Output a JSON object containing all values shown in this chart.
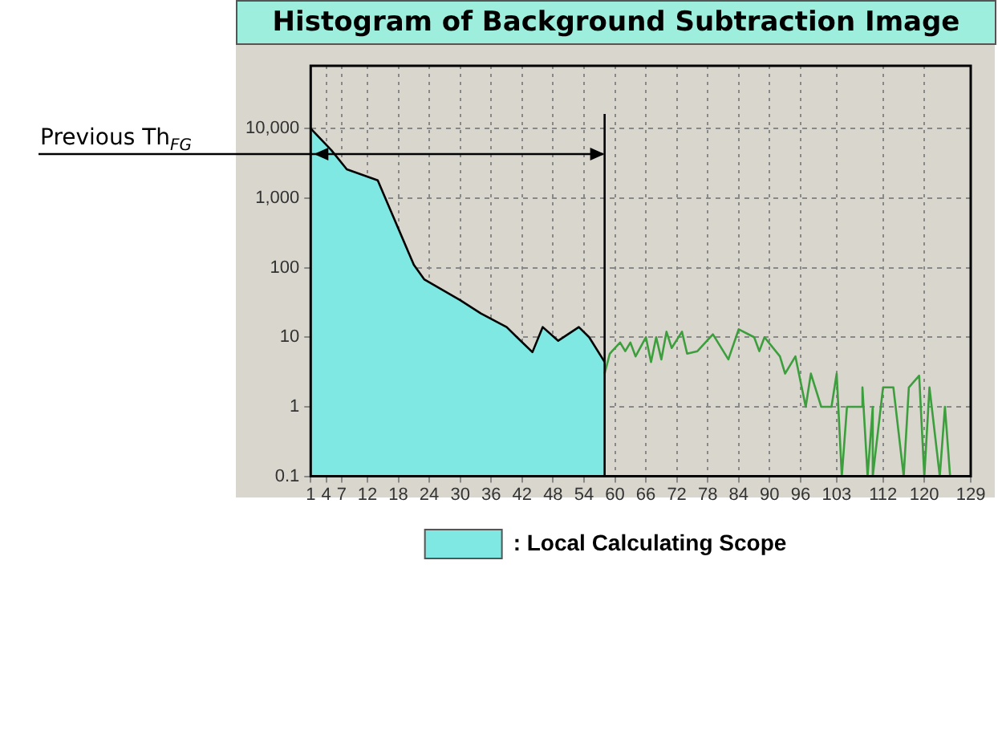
{
  "chart_data": {
    "type": "line",
    "title": "Histogram of Background Subtraction Image",
    "xlim": [
      1,
      129
    ],
    "xticks": [
      1,
      4,
      7,
      12,
      18,
      24,
      30,
      36,
      42,
      48,
      54,
      60,
      66,
      72,
      78,
      84,
      90,
      96,
      103,
      112,
      120,
      129
    ],
    "ylim": [
      0.1,
      80000
    ],
    "yticks": [
      0.1,
      1,
      10,
      100,
      {
        "value": 1000,
        "label": "1,000"
      },
      {
        "value": 10000,
        "label": "10,000"
      }
    ],
    "log": "y",
    "grid": true,
    "legend": "bottom",
    "marker": "none",
    "series": [
      {
        "name": ": Local Calculating Scope",
        "type": "area",
        "color": "#7fe8e2",
        "x": [
          1,
          5,
          8,
          14,
          21,
          23,
          30,
          34,
          39,
          41,
          44,
          46,
          49,
          53,
          55,
          58
        ],
        "values": [
          10000,
          4900,
          2600,
          1800,
          110,
          68,
          34,
          22,
          14,
          10,
          6.1,
          14,
          8.9,
          14,
          10,
          4.4
        ]
      },
      {
        "type": "line",
        "color": "#3c9e3c",
        "x": [
          58,
          59,
          61,
          62,
          63,
          64,
          66,
          67,
          68,
          69,
          70,
          71,
          73,
          74,
          76,
          79,
          82,
          84,
          87,
          88,
          89,
          92,
          93,
          95,
          97,
          98,
          100,
          102,
          103,
          104,
          105,
          108,
          108,
          109,
          110,
          110,
          112,
          114,
          116,
          117,
          119,
          120,
          121,
          123,
          124,
          125
        ],
        "values": [
          3,
          5.8,
          8.4,
          6.3,
          8.4,
          5.3,
          10,
          4.4,
          10,
          4.8,
          12,
          7,
          12,
          5.8,
          6.3,
          11,
          4.8,
          13,
          10,
          6.3,
          10,
          5.3,
          3,
          5.3,
          1,
          3,
          1,
          1,
          3,
          0.1,
          1,
          1,
          1.9,
          0.1,
          1,
          0.1,
          1.9,
          1.9,
          0.1,
          1.9,
          2.8,
          0.1,
          1.9,
          0.1,
          1,
          0.1
        ]
      }
    ],
    "ref_lines": [
      {
        "axis": "x",
        "value": 58,
        "label": "Previous Th$_{FG}$",
        "color": "#000000"
      }
    ]
  }
}
